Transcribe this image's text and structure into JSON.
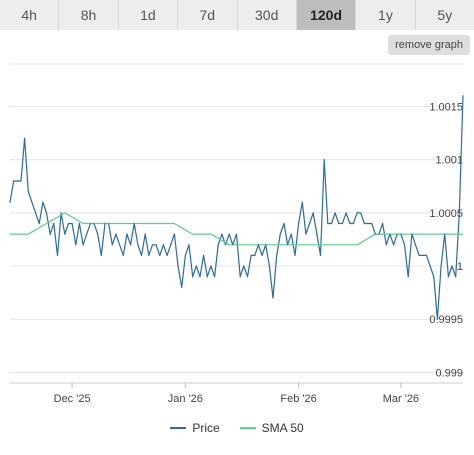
{
  "tabs": [
    {
      "label": "4h",
      "active": false
    },
    {
      "label": "8h",
      "active": false
    },
    {
      "label": "1d",
      "active": false
    },
    {
      "label": "7d",
      "active": false
    },
    {
      "label": "30d",
      "active": false
    },
    {
      "label": "120d",
      "active": true
    },
    {
      "label": "1y",
      "active": false
    },
    {
      "label": "5y",
      "active": false
    }
  ],
  "remove_graph_label": "remove graph",
  "colors": {
    "price": "#2b6ca3",
    "sma": "#5ad08a",
    "grid": "#e4e4e4",
    "active_tab": "#bdbdbd"
  },
  "chart_data": {
    "type": "line",
    "ylim": [
      0.9989,
      1.0019
    ],
    "y_ticks": [
      {
        "value": 0.999,
        "label": "0.999"
      },
      {
        "value": 0.9995,
        "label": "0.9995"
      },
      {
        "value": 1.0,
        "label": "1"
      },
      {
        "value": 1.0005,
        "label": "1.0005"
      },
      {
        "value": 1.001,
        "label": "1.001"
      },
      {
        "value": 1.0015,
        "label": "1.0015"
      }
    ],
    "x_ticks": [
      {
        "day": 17,
        "label": "Dec '25"
      },
      {
        "day": 48,
        "label": "Jan '26"
      },
      {
        "day": 79,
        "label": "Feb '26"
      },
      {
        "day": 107,
        "label": "Mar '26"
      }
    ],
    "x_range": [
      0,
      124
    ],
    "series": [
      {
        "name": "Price",
        "points": [
          [
            0,
            1.0006
          ],
          [
            1,
            1.0008
          ],
          [
            2,
            1.0008
          ],
          [
            3,
            1.0008
          ],
          [
            4,
            1.0012
          ],
          [
            5,
            1.0007
          ],
          [
            6,
            1.0006
          ],
          [
            7,
            1.0005
          ],
          [
            8,
            1.0004
          ],
          [
            9,
            1.0006
          ],
          [
            10,
            1.0005
          ],
          [
            11,
            1.0003
          ],
          [
            12,
            1.0004
          ],
          [
            13,
            1.0001
          ],
          [
            14,
            1.0005
          ],
          [
            15,
            1.0003
          ],
          [
            16,
            1.0004
          ],
          [
            17,
            1.0004
          ],
          [
            18,
            1.0002
          ],
          [
            19,
            1.0004
          ],
          [
            20,
            1.0002
          ],
          [
            21,
            1.0003
          ],
          [
            22,
            1.0004
          ],
          [
            23,
            1.0004
          ],
          [
            24,
            1.0003
          ],
          [
            25,
            1.0001
          ],
          [
            26,
            1.0004
          ],
          [
            27,
            1.0004
          ],
          [
            28,
            1.0002
          ],
          [
            29,
            1.0003
          ],
          [
            30,
            1.0002
          ],
          [
            31,
            1.0001
          ],
          [
            32,
            1.0003
          ],
          [
            33,
            1.0002
          ],
          [
            34,
            1.0004
          ],
          [
            35,
            1.0002
          ],
          [
            36,
            1.0001
          ],
          [
            37,
            1.0003
          ],
          [
            38,
            1.0001
          ],
          [
            39,
            1.0002
          ],
          [
            40,
            1.0002
          ],
          [
            41,
            1.0001
          ],
          [
            42,
            1.0002
          ],
          [
            43,
            1.0001
          ],
          [
            44,
            1.0002
          ],
          [
            45,
            1.0003
          ],
          [
            46,
            1.0
          ],
          [
            47,
            0.9998
          ],
          [
            48,
            1.0001
          ],
          [
            49,
            1.0002
          ],
          [
            50,
            0.9999
          ],
          [
            51,
            1.0
          ],
          [
            52,
            0.9999
          ],
          [
            53,
            1.0001
          ],
          [
            54,
            0.9999
          ],
          [
            55,
            1.0
          ],
          [
            56,
            0.9999
          ],
          [
            57,
            1.0002
          ],
          [
            58,
            1.0003
          ],
          [
            59,
            1.0002
          ],
          [
            60,
            1.0003
          ],
          [
            61,
            1.0002
          ],
          [
            62,
            1.0003
          ],
          [
            63,
            0.9999
          ],
          [
            64,
            1.0
          ],
          [
            65,
            0.9999
          ],
          [
            66,
            1.0001
          ],
          [
            67,
            1.0001
          ],
          [
            68,
            1.0002
          ],
          [
            69,
            1.0001
          ],
          [
            70,
            1.0002
          ],
          [
            71,
            1.0
          ],
          [
            72,
            0.9997
          ],
          [
            73,
            1.0001
          ],
          [
            74,
            1.0003
          ],
          [
            75,
            1.0004
          ],
          [
            76,
            1.0002
          ],
          [
            77,
            1.0003
          ],
          [
            78,
            1.0001
          ],
          [
            79,
            1.0004
          ],
          [
            80,
            1.0006
          ],
          [
            81,
            1.0003
          ],
          [
            82,
            1.0004
          ],
          [
            83,
            1.0005
          ],
          [
            84,
            1.0003
          ],
          [
            85,
            1.0001
          ],
          [
            86,
            1.001
          ],
          [
            87,
            1.0004
          ],
          [
            88,
            1.0004
          ],
          [
            89,
            1.0005
          ],
          [
            90,
            1.0004
          ],
          [
            91,
            1.0004
          ],
          [
            92,
            1.0005
          ],
          [
            93,
            1.0004
          ],
          [
            94,
            1.0004
          ],
          [
            95,
            1.0005
          ],
          [
            96,
            1.0005
          ],
          [
            97,
            1.0004
          ],
          [
            98,
            1.0004
          ],
          [
            99,
            1.0004
          ],
          [
            100,
            1.0003
          ],
          [
            101,
            1.0003
          ],
          [
            102,
            1.0004
          ],
          [
            103,
            1.0002
          ],
          [
            104,
            1.0003
          ],
          [
            105,
            1.0002
          ],
          [
            106,
            1.0003
          ],
          [
            107,
            1.0003
          ],
          [
            108,
            1.0002
          ],
          [
            109,
            0.9999
          ],
          [
            110,
            1.0003
          ],
          [
            111,
            1.0002
          ],
          [
            112,
            1.0001
          ],
          [
            113,
            1.0001
          ],
          [
            114,
            1.0001
          ],
          [
            115,
            1.0
          ],
          [
            116,
            0.9999
          ],
          [
            117,
            0.9995
          ],
          [
            118,
            1.0
          ],
          [
            119,
            1.0003
          ],
          [
            120,
            0.9999
          ],
          [
            121,
            1.0
          ],
          [
            122,
            0.9999
          ],
          [
            123,
            1.0005
          ],
          [
            124,
            1.0016
          ]
        ]
      },
      {
        "name": "SMA 50",
        "points": [
          [
            0,
            1.0003
          ],
          [
            5,
            1.0003
          ],
          [
            10,
            1.0004
          ],
          [
            15,
            1.0005
          ],
          [
            20,
            1.0004
          ],
          [
            25,
            1.0004
          ],
          [
            30,
            1.0004
          ],
          [
            35,
            1.0004
          ],
          [
            40,
            1.0004
          ],
          [
            45,
            1.0004
          ],
          [
            50,
            1.0003
          ],
          [
            55,
            1.0003
          ],
          [
            60,
            1.0002
          ],
          [
            65,
            1.0002
          ],
          [
            70,
            1.0002
          ],
          [
            75,
            1.0002
          ],
          [
            80,
            1.0002
          ],
          [
            85,
            1.0002
          ],
          [
            90,
            1.0002
          ],
          [
            95,
            1.0002
          ],
          [
            100,
            1.0003
          ],
          [
            105,
            1.0003
          ],
          [
            110,
            1.0003
          ],
          [
            115,
            1.0003
          ],
          [
            120,
            1.0003
          ],
          [
            124,
            1.0003
          ]
        ]
      }
    ]
  }
}
